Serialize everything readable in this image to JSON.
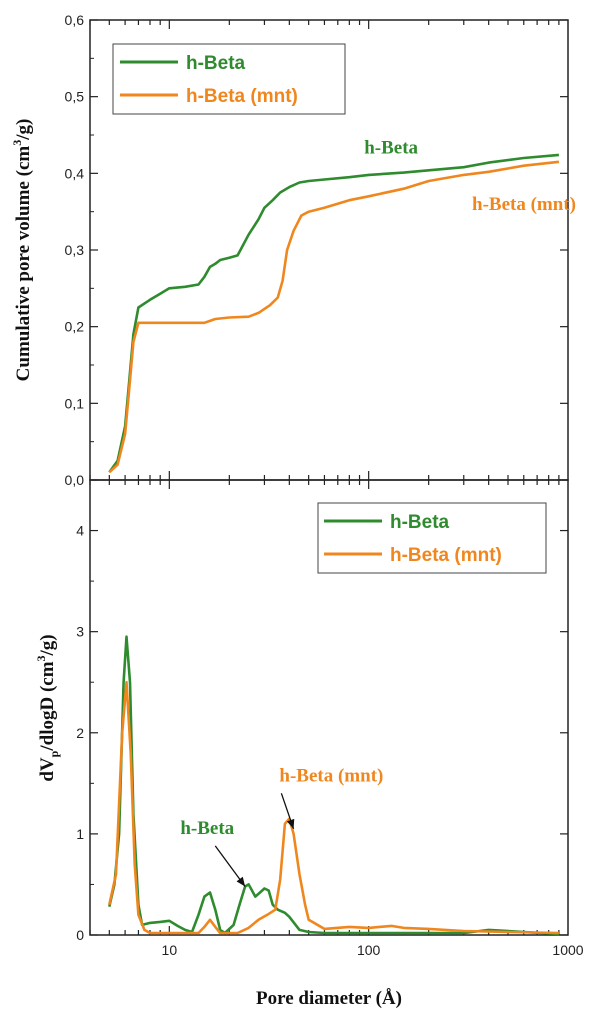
{
  "chart_data": [
    {
      "type": "line",
      "panel": "top",
      "ylabel_main": "Cumulative pore volume (cm",
      "ylabel_sup": "3",
      "ylabel_end": "/g)",
      "xscale": "log",
      "xlim": [
        4,
        1000
      ],
      "ylim": [
        0,
        0.6
      ],
      "yticks": [
        {
          "v": 0.0,
          "label": "0,0"
        },
        {
          "v": 0.1,
          "label": "0,1"
        },
        {
          "v": 0.2,
          "label": "0,2"
        },
        {
          "v": 0.3,
          "label": "0,3"
        },
        {
          "v": 0.4,
          "label": "0,4"
        },
        {
          "v": 0.5,
          "label": "0,5"
        },
        {
          "v": 0.6,
          "label": "0,6"
        }
      ],
      "legend_position": "top-left",
      "annotations": [
        {
          "text": "h-Beta",
          "color": "#2e8b2e",
          "x": 95,
          "y": 0.426
        },
        {
          "text": "h-Beta (mnt)",
          "color": "#f0871e",
          "x": 330,
          "y": 0.352
        }
      ],
      "series": [
        {
          "name": "h-Beta",
          "color": "#2e8b2e",
          "points": [
            [
              5,
              0.01
            ],
            [
              5.5,
              0.025
            ],
            [
              6,
              0.07
            ],
            [
              6.3,
              0.13
            ],
            [
              6.6,
              0.19
            ],
            [
              7,
              0.225
            ],
            [
              8,
              0.235
            ],
            [
              9,
              0.243
            ],
            [
              10,
              0.25
            ],
            [
              12,
              0.252
            ],
            [
              14,
              0.255
            ],
            [
              15,
              0.265
            ],
            [
              16,
              0.278
            ],
            [
              17,
              0.282
            ],
            [
              18,
              0.287
            ],
            [
              20,
              0.29
            ],
            [
              22,
              0.293
            ],
            [
              25,
              0.32
            ],
            [
              28,
              0.34
            ],
            [
              30,
              0.355
            ],
            [
              33,
              0.365
            ],
            [
              36,
              0.375
            ],
            [
              40,
              0.382
            ],
            [
              45,
              0.388
            ],
            [
              50,
              0.39
            ],
            [
              60,
              0.392
            ],
            [
              80,
              0.395
            ],
            [
              100,
              0.398
            ],
            [
              150,
              0.401
            ],
            [
              200,
              0.404
            ],
            [
              300,
              0.408
            ],
            [
              400,
              0.414
            ],
            [
              600,
              0.42
            ],
            [
              900,
              0.424
            ]
          ]
        },
        {
          "name": "h-Beta (mnt)",
          "color": "#f0871e",
          "points": [
            [
              5,
              0.01
            ],
            [
              5.5,
              0.02
            ],
            [
              6,
              0.06
            ],
            [
              6.3,
              0.12
            ],
            [
              6.6,
              0.18
            ],
            [
              7,
              0.205
            ],
            [
              8,
              0.205
            ],
            [
              10,
              0.205
            ],
            [
              12,
              0.205
            ],
            [
              15,
              0.205
            ],
            [
              17,
              0.21
            ],
            [
              20,
              0.212
            ],
            [
              25,
              0.213
            ],
            [
              28,
              0.218
            ],
            [
              32,
              0.228
            ],
            [
              35,
              0.238
            ],
            [
              37,
              0.26
            ],
            [
              39,
              0.3
            ],
            [
              42,
              0.325
            ],
            [
              46,
              0.345
            ],
            [
              50,
              0.35
            ],
            [
              60,
              0.355
            ],
            [
              80,
              0.365
            ],
            [
              100,
              0.37
            ],
            [
              150,
              0.38
            ],
            [
              200,
              0.39
            ],
            [
              300,
              0.398
            ],
            [
              400,
              0.402
            ],
            [
              600,
              0.41
            ],
            [
              900,
              0.415
            ]
          ]
        }
      ]
    },
    {
      "type": "line",
      "panel": "bottom",
      "ylabel_a": "dV",
      "ylabel_sub": "p",
      "ylabel_b": "/dlogD (cm",
      "ylabel_sup": "3",
      "ylabel_end": "/g)",
      "xlabel": "Pore diameter (Å)",
      "xscale": "log",
      "xlim": [
        4,
        1000
      ],
      "ylim": [
        0,
        4.5
      ],
      "xticks": [
        {
          "v": 10,
          "label": "10"
        },
        {
          "v": 100,
          "label": "100"
        },
        {
          "v": 1000,
          "label": "1000"
        }
      ],
      "yticks": [
        {
          "v": 0,
          "label": "0"
        },
        {
          "v": 1,
          "label": "1"
        },
        {
          "v": 2,
          "label": "2"
        },
        {
          "v": 3,
          "label": "3"
        },
        {
          "v": 4,
          "label": "4"
        }
      ],
      "legend_position": "top-right",
      "annotations": [
        {
          "text": "h-Beta",
          "color": "#2e8b2e",
          "x": 15.5,
          "y": 1.0,
          "arrow_to": [
            24,
            0.48
          ]
        },
        {
          "text": "h-Beta (mnt)",
          "color": "#f0871e",
          "x": 65,
          "y": 1.52,
          "arrow_to": [
            42,
            1.05
          ]
        }
      ],
      "series": [
        {
          "name": "h-Beta",
          "color": "#2e8b2e",
          "points": [
            [
              5,
              0.28
            ],
            [
              5.3,
              0.5
            ],
            [
              5.6,
              1.0
            ],
            [
              5.9,
              2.5
            ],
            [
              6.1,
              2.95
            ],
            [
              6.35,
              2.5
            ],
            [
              6.6,
              1.2
            ],
            [
              7,
              0.3
            ],
            [
              7.3,
              0.1
            ],
            [
              8,
              0.12
            ],
            [
              9,
              0.13
            ],
            [
              10,
              0.14
            ],
            [
              11,
              0.09
            ],
            [
              12,
              0.05
            ],
            [
              13,
              0.03
            ],
            [
              14,
              0.2
            ],
            [
              15,
              0.38
            ],
            [
              16,
              0.42
            ],
            [
              17,
              0.25
            ],
            [
              18,
              0.05
            ],
            [
              19,
              0.02
            ],
            [
              21,
              0.1
            ],
            [
              22.5,
              0.3
            ],
            [
              24,
              0.48
            ],
            [
              25,
              0.5
            ],
            [
              26,
              0.44
            ],
            [
              27,
              0.38
            ],
            [
              28.5,
              0.42
            ],
            [
              30,
              0.46
            ],
            [
              31.5,
              0.44
            ],
            [
              33,
              0.3
            ],
            [
              35,
              0.25
            ],
            [
              38,
              0.22
            ],
            [
              40,
              0.18
            ],
            [
              45,
              0.05
            ],
            [
              50,
              0.03
            ],
            [
              60,
              0.02
            ],
            [
              100,
              0.02
            ],
            [
              200,
              0.02
            ],
            [
              300,
              0.02
            ],
            [
              400,
              0.05
            ],
            [
              600,
              0.03
            ],
            [
              900,
              0.01
            ]
          ]
        },
        {
          "name": "h-Beta (mnt)",
          "color": "#f0871e",
          "points": [
            [
              5,
              0.3
            ],
            [
              5.4,
              0.6
            ],
            [
              5.8,
              2.0
            ],
            [
              6.1,
              2.5
            ],
            [
              6.4,
              1.8
            ],
            [
              6.7,
              0.7
            ],
            [
              7,
              0.2
            ],
            [
              7.5,
              0.05
            ],
            [
              8,
              0.02
            ],
            [
              10,
              0.02
            ],
            [
              14,
              0.02
            ],
            [
              15,
              0.08
            ],
            [
              16,
              0.15
            ],
            [
              17,
              0.08
            ],
            [
              18,
              0.02
            ],
            [
              22,
              0.02
            ],
            [
              25,
              0.07
            ],
            [
              28,
              0.15
            ],
            [
              31,
              0.2
            ],
            [
              34,
              0.25
            ],
            [
              36,
              0.55
            ],
            [
              38,
              1.1
            ],
            [
              40,
              1.15
            ],
            [
              42,
              1.0
            ],
            [
              45,
              0.6
            ],
            [
              48,
              0.3
            ],
            [
              50,
              0.15
            ],
            [
              60,
              0.06
            ],
            [
              80,
              0.08
            ],
            [
              100,
              0.07
            ],
            [
              130,
              0.09
            ],
            [
              150,
              0.07
            ],
            [
              200,
              0.06
            ],
            [
              300,
              0.04
            ],
            [
              500,
              0.03
            ],
            [
              900,
              0.02
            ]
          ]
        }
      ]
    }
  ]
}
